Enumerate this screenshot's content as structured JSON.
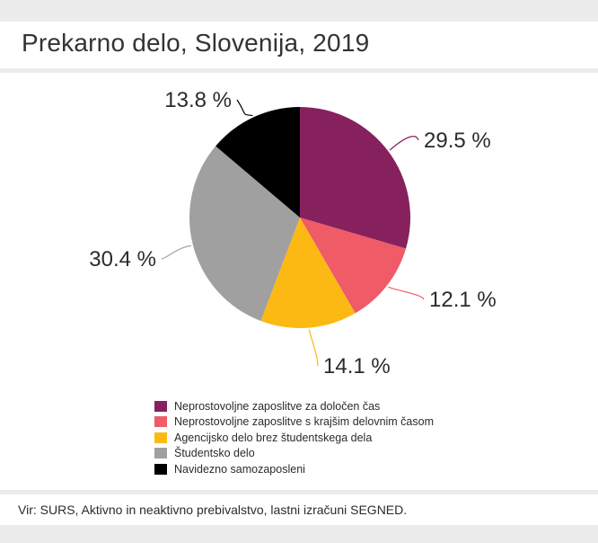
{
  "title": "Prekarno delo, Slovenija, 2019",
  "source": "Vir: SURS, Aktivno in neaktivno prebivalstvo, lastni izračuni SEGNED.",
  "chart_data": {
    "type": "pie",
    "categories": [
      "Neprostovoljne zaposlitve za določen čas",
      "Neprostovoljne zaposlitve s krajšim delovnim časom",
      "Agencijsko delo brez študentskega dela",
      "Študentsko delo",
      "Navidezno samozaposleni"
    ],
    "values": [
      29.5,
      12.1,
      14.1,
      30.4,
      13.8
    ],
    "labels": [
      "29.5 %",
      "12.1 %",
      "14.1 %",
      "30.4 %",
      "13.8 %"
    ],
    "colors": [
      "#86215e",
      "#ef5b66",
      "#fdb913",
      "#a0a0a0",
      "#000000"
    ],
    "legend_position": "bottom"
  }
}
